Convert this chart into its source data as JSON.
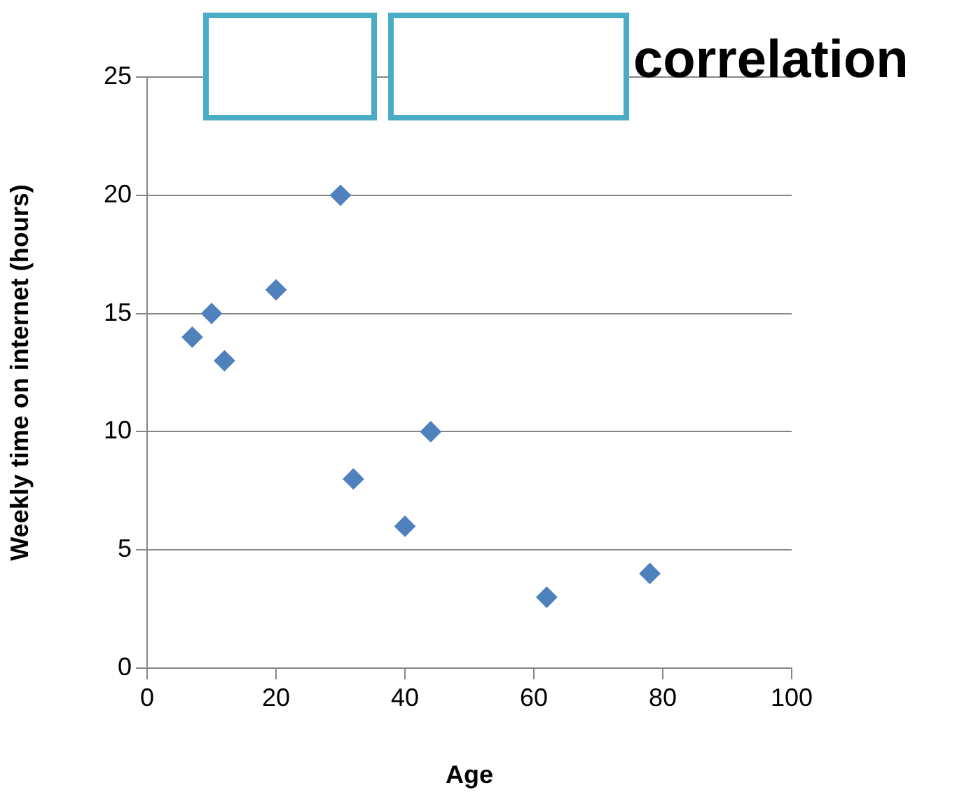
{
  "chart_data": {
    "type": "scatter",
    "title": "correlation",
    "xlabel": "Age",
    "ylabel": "Weekly time on internet (hours)",
    "x": [
      7,
      10,
      12,
      20,
      30,
      32,
      40,
      44,
      62,
      78
    ],
    "series": [
      {
        "color": "#4f81bd",
        "values": [
          14,
          15,
          13,
          16,
          20,
          8,
          6,
          10,
          3,
          4
        ]
      }
    ],
    "xlim": [
      0,
      100
    ],
    "xticks": [
      0,
      20,
      40,
      60,
      80,
      100
    ],
    "ylim": [
      0,
      25
    ],
    "yticks": [
      0,
      5,
      10,
      15,
      20,
      25
    ],
    "grid": "y",
    "legend": false,
    "marker": "diamond"
  }
}
